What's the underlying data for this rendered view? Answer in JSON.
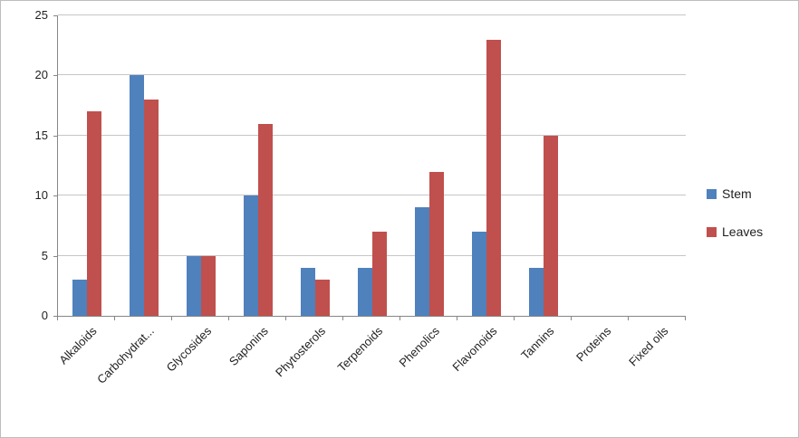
{
  "chart_data": {
    "type": "bar",
    "categories": [
      "Alkaloids",
      "Carbohydrat...",
      "Glycosides",
      "Saponins",
      "Phytosterols",
      "Terpenoids",
      "Phenolics",
      "Flavonoids",
      "Tannins",
      "Proteins",
      "Fixed oils"
    ],
    "series": [
      {
        "name": "Stem",
        "color": "#4F81BD",
        "values": [
          3,
          20,
          5,
          10,
          4,
          4,
          9,
          7,
          4,
          0,
          0
        ]
      },
      {
        "name": "Leaves",
        "color": "#C0504D",
        "values": [
          17,
          18,
          5,
          16,
          3,
          7,
          12,
          23,
          15,
          0,
          0
        ]
      }
    ],
    "title": "",
    "xlabel": "",
    "ylabel": "",
    "ylim": [
      0,
      25
    ],
    "ytick_step": 5,
    "grid": true,
    "legend_position": "right",
    "colors": {
      "gridline": "#c6c6c6",
      "axis": "#868686",
      "background": "#ffffff"
    }
  }
}
